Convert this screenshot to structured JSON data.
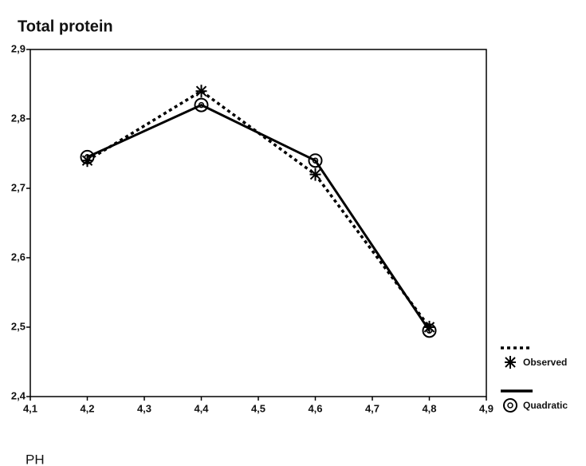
{
  "chart_data": {
    "type": "line",
    "title": "Total protein",
    "x_label": "PH",
    "x": [
      4.2,
      4.4,
      4.6,
      4.8
    ],
    "series": [
      {
        "name": "Observed",
        "color": "#000000",
        "line_style": "dotted",
        "marker": "asterisk",
        "values": [
          2.74,
          2.84,
          2.72,
          2.5
        ]
      },
      {
        "name": "Quadratic",
        "color": "#000000",
        "line_style": "solid",
        "marker": "circle",
        "values": [
          2.745,
          2.82,
          2.74,
          2.495
        ]
      }
    ],
    "xlim": [
      4.1,
      4.9
    ],
    "xticks": [
      {
        "value": 4.1,
        "label": "4,1"
      },
      {
        "value": 4.2,
        "label": "4,2"
      },
      {
        "value": 4.3,
        "label": "4,3"
      },
      {
        "value": 4.4,
        "label": "4,4"
      },
      {
        "value": 4.5,
        "label": "4,5"
      },
      {
        "value": 4.6,
        "label": "4,6"
      },
      {
        "value": 4.7,
        "label": "4,7"
      },
      {
        "value": 4.8,
        "label": "4,8"
      },
      {
        "value": 4.9,
        "label": "4,9"
      }
    ],
    "ylim": [
      2.4,
      2.9
    ],
    "yticks": [
      {
        "value": 2.4,
        "label": "2,4"
      },
      {
        "value": 2.5,
        "label": "2,5"
      },
      {
        "value": 2.6,
        "label": "2,6"
      },
      {
        "value": 2.7,
        "label": "2,7"
      },
      {
        "value": 2.8,
        "label": "2,8"
      },
      {
        "value": 2.9,
        "label": "2,9"
      }
    ],
    "legend": "right"
  }
}
